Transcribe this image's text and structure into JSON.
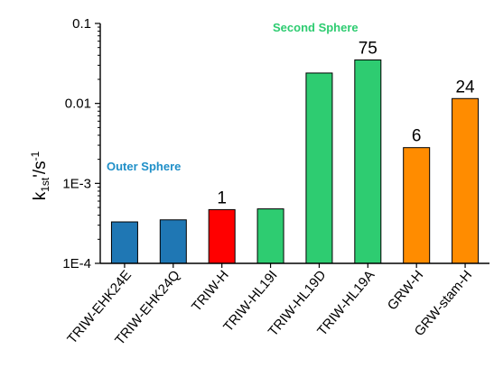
{
  "chart_data": {
    "type": "bar",
    "categories": [
      "TRIW-EHK24E",
      "TRIW-EHK24Q",
      "TRIW-H",
      "TRIW-HL19I",
      "TRIW-HL19D",
      "TRIW-HL19A",
      "GRW-H",
      "GRW-stam-H"
    ],
    "values": [
      0.00033,
      0.00035,
      0.00047,
      0.00048,
      0.024,
      0.035,
      0.0028,
      0.0115
    ],
    "bar_colors": [
      "#1f77b4",
      "#1f77b4",
      "#ff0000",
      "#2ecc71",
      "#2ecc71",
      "#2ecc71",
      "#ff8c00",
      "#ff8c00"
    ],
    "annotations": [
      "",
      "",
      "1",
      "",
      "",
      "75",
      "6",
      "24"
    ],
    "y_scale": "log",
    "ylim": [
      0.0001,
      0.1
    ],
    "y_ticks": [
      {
        "value": 0.0001,
        "label": "1E-4"
      },
      {
        "value": 0.001,
        "label": "1E-3"
      },
      {
        "value": 0.01,
        "label": "0.01"
      },
      {
        "value": 0.1,
        "label": "0.1"
      }
    ],
    "ylabel": {
      "main": "k",
      "sub1": "1st",
      "prime": "'/s",
      "sup": "-1"
    },
    "groups": [
      {
        "label": "Outer Sphere",
        "color": "#1f8fc8"
      },
      {
        "label": "Second Sphere",
        "color": "#2ecc71"
      }
    ]
  }
}
